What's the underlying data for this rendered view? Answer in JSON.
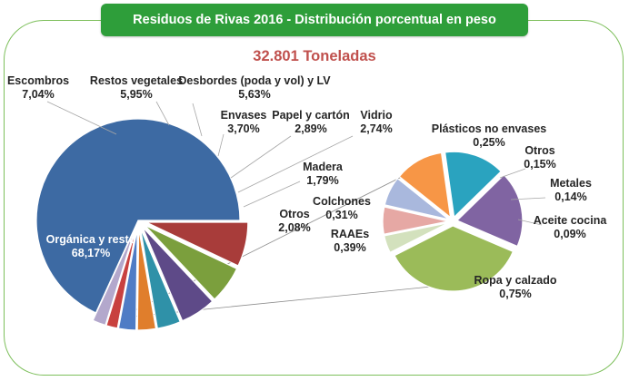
{
  "chart_data": {
    "type": "pie",
    "title": "Residuos de Rivas 2016 - Distribución porcentual en peso",
    "subtitle": "32.801 Toneladas",
    "slices": [
      {
        "name": "Orgánica y resto",
        "value": 68.17,
        "value_label": "68,17%",
        "color": "#3d6aa3"
      },
      {
        "name": "Escombros",
        "value": 7.04,
        "value_label": "7,04%",
        "color": "#a83c3a"
      },
      {
        "name": "Restos vegetales",
        "value": 5.95,
        "value_label": "5,95%",
        "color": "#7b9f3d"
      },
      {
        "name": "Desbordes (poda y vol) y LV",
        "value": 5.63,
        "value_label": "5,63%",
        "color": "#5e4a88"
      },
      {
        "name": "Envases",
        "value": 3.7,
        "value_label": "3,70%",
        "color": "#2f91a8"
      },
      {
        "name": "Papel y cartón",
        "value": 2.89,
        "value_label": "2,89%",
        "color": "#e07e2c"
      },
      {
        "name": "Vidrio",
        "value": 2.74,
        "value_label": "2,74%",
        "color": "#4f7cc5"
      },
      {
        "name": "Madera",
        "value": 1.79,
        "value_label": "1,79%",
        "color": "#c8413f"
      },
      {
        "name": "Otros",
        "value": 2.08,
        "value_label": "2,08%",
        "color": "#b3a8cc"
      }
    ],
    "breakdown": {
      "of": "Otros",
      "slices": [
        {
          "name": "Ropa y calzado",
          "value": 0.75,
          "value_label": "0,75%",
          "color": "#9bbb59"
        },
        {
          "name": "RAAEs",
          "value": 0.39,
          "value_label": "0,39%",
          "color": "#8064a2"
        },
        {
          "name": "Colchones",
          "value": 0.31,
          "value_label": "0,31%",
          "color": "#2aa3bf"
        },
        {
          "name": "Plásticos no envases",
          "value": 0.25,
          "value_label": "0,25%",
          "color": "#f79646"
        },
        {
          "name": "Otros",
          "value": 0.15,
          "value_label": "0,15%",
          "color": "#a9b8dd"
        },
        {
          "name": "Metales",
          "value": 0.14,
          "value_label": "0,14%",
          "color": "#e6a8a4"
        },
        {
          "name": "Aceite cocina",
          "value": 0.09,
          "value_label": "0,09%",
          "color": "#d3e1bd"
        }
      ]
    }
  }
}
